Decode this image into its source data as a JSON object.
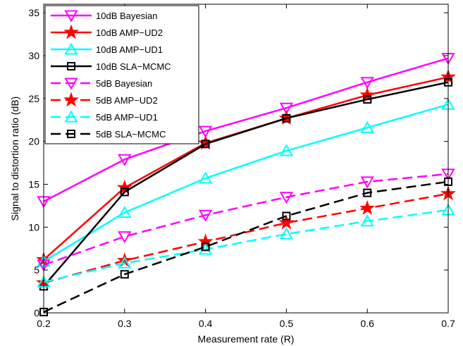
{
  "chart_data": {
    "type": "line",
    "title": "",
    "xlabel": "Measurement rate (R)",
    "ylabel": "Signal to distortion ratio (dB)",
    "xlim": [
      0.2,
      0.7
    ],
    "ylim": [
      0,
      36
    ],
    "xticks": [
      "0.2",
      "0.3",
      "0.4",
      "0.5",
      "0.6",
      "0.7"
    ],
    "yticks": [
      "0",
      "5",
      "10",
      "15",
      "20",
      "25",
      "30",
      "35"
    ],
    "grid": false,
    "legend_position": "top-left",
    "x": [
      0.2,
      0.3,
      0.4,
      0.5,
      0.6,
      0.7
    ],
    "series": [
      {
        "name": "10dB Bayesian",
        "values": [
          13.0,
          17.9,
          21.2,
          23.9,
          26.9,
          29.7
        ],
        "color": "#ff00ff",
        "dash": "solid",
        "marker": "triangle-down"
      },
      {
        "name": "10dB AMP−UD2",
        "values": [
          6.2,
          14.6,
          19.8,
          22.7,
          25.4,
          27.5
        ],
        "color": "#ff0000",
        "dash": "solid",
        "marker": "star"
      },
      {
        "name": "10dB AMP−UD1",
        "values": [
          6.0,
          11.7,
          15.7,
          18.9,
          21.6,
          24.3
        ],
        "color": "#00ffff",
        "dash": "solid",
        "marker": "triangle-up"
      },
      {
        "name": "10dB SLA−MCMC",
        "values": [
          3.1,
          14.1,
          19.7,
          22.7,
          24.9,
          26.9
        ],
        "color": "#000000",
        "dash": "solid",
        "marker": "square"
      },
      {
        "name": "5dB Bayesian",
        "values": [
          5.6,
          8.9,
          11.4,
          13.5,
          15.3,
          16.2
        ],
        "color": "#ff00ff",
        "dash": "dashed",
        "marker": "triangle-down"
      },
      {
        "name": "5dB AMP−UD2",
        "values": [
          3.5,
          6.1,
          8.3,
          10.5,
          12.2,
          13.9
        ],
        "color": "#ff0000",
        "dash": "dashed",
        "marker": "star"
      },
      {
        "name": "5dB AMP−UD1",
        "values": [
          3.6,
          5.8,
          7.4,
          9.2,
          10.7,
          12.0
        ],
        "color": "#00ffff",
        "dash": "dashed",
        "marker": "triangle-up"
      },
      {
        "name": "5dB SLA−MCMC",
        "values": [
          0.1,
          4.5,
          7.7,
          11.3,
          14.0,
          15.3
        ],
        "color": "#000000",
        "dash": "dashed",
        "marker": "square"
      }
    ]
  }
}
